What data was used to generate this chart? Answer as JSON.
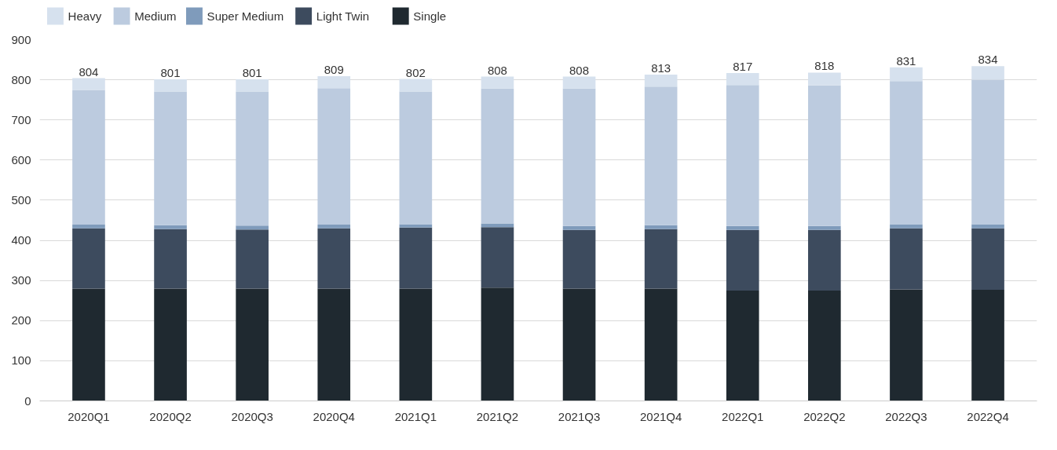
{
  "chart_data": {
    "type": "bar",
    "stacked": true,
    "categories": [
      "2020Q1",
      "2020Q2",
      "2020Q3",
      "2020Q4",
      "2021Q1",
      "2021Q2",
      "2021Q3",
      "2021Q4",
      "2022Q1",
      "2022Q2",
      "2022Q3",
      "2022Q4"
    ],
    "series": [
      {
        "name": "Single",
        "color": "#1f2930",
        "values": [
          280,
          280,
          280,
          280,
          280,
          282,
          280,
          280,
          275,
          275,
          278,
          277
        ]
      },
      {
        "name": "Light Twin",
        "color": "#3d4b5e",
        "values": [
          150,
          148,
          147,
          150,
          152,
          151,
          146,
          148,
          151,
          151,
          152,
          153
        ]
      },
      {
        "name": "Super Medium",
        "color": "#7f9bbb",
        "values": [
          9,
          10,
          10,
          9,
          8,
          9,
          10,
          10,
          10,
          10,
          10,
          10
        ]
      },
      {
        "name": "Medium",
        "color": "#bccbdf",
        "values": [
          336,
          333,
          334,
          340,
          331,
          336,
          342,
          345,
          351,
          350,
          357,
          360
        ]
      },
      {
        "name": "Heavy",
        "color": "#d6e1ee",
        "values": [
          29,
          30,
          30,
          30,
          31,
          30,
          30,
          30,
          30,
          32,
          34,
          34
        ]
      }
    ],
    "totals": [
      "804",
      "801",
      "801",
      "809",
      "802",
      "808",
      "808",
      "813",
      "817",
      "818",
      "831",
      "834"
    ],
    "ylim": [
      0,
      900
    ],
    "yticks": [
      0,
      100,
      200,
      300,
      400,
      500,
      600,
      700,
      800,
      900
    ],
    "grid": "y",
    "legend": "top left"
  }
}
